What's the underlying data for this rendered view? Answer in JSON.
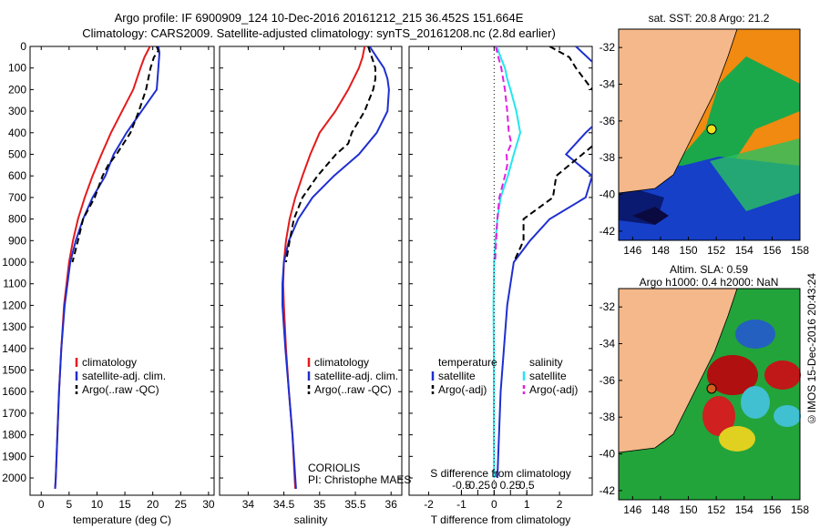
{
  "header": {
    "title_line1": "Argo profile: IF 6900909_124 10-Dec-2016 20161212_215 36.452S 151.664E",
    "title_line2": "Climatology: CARS2009. Satellite-adjusted climatology: synTS_20161208.nc (2.8d earlier)"
  },
  "credit": "©IMOS 15-Dec-2016 20:43:24",
  "colors": {
    "climatology": "#e41a1c",
    "satellite": "#1f2fd0",
    "argo": "#000000",
    "salinity_satellite": "#22e6f0",
    "salinity_argo": "#e020e0",
    "land": "#f4b88a"
  },
  "chart_data": [
    {
      "type": "line",
      "panel": "temperature",
      "xlabel": "temperature (deg C)",
      "xlim": [
        -2,
        31
      ],
      "ylim": [
        2080,
        0
      ],
      "x_ticks": [
        0,
        5,
        10,
        15,
        20,
        25,
        30
      ],
      "y_ticks": [
        0,
        100,
        200,
        300,
        400,
        500,
        600,
        700,
        800,
        900,
        1000,
        1100,
        1200,
        1300,
        1400,
        1500,
        1600,
        1700,
        1800,
        1900,
        2000
      ],
      "legend": [
        "climatology",
        "satellite-adj. clim.",
        "Argo(..raw -QC)"
      ],
      "series": [
        {
          "name": "climatology",
          "style": "solid",
          "color": "#e41a1c",
          "depth": [
            0,
            50,
            100,
            200,
            300,
            400,
            500,
            600,
            700,
            800,
            900,
            1000,
            1200,
            1400,
            1600,
            1800,
            2000,
            2050
          ],
          "values": [
            19.5,
            18.5,
            17.8,
            16.5,
            14.5,
            12.5,
            10.8,
            9.2,
            7.8,
            6.6,
            5.7,
            5.0,
            4.1,
            3.6,
            3.2,
            2.9,
            2.6,
            2.5
          ]
        },
        {
          "name": "satellite-adj. clim.",
          "style": "solid",
          "color": "#1f2fd0",
          "depth": [
            0,
            30,
            100,
            200,
            300,
            400,
            500,
            600,
            700,
            800,
            900,
            1000,
            1200,
            1400,
            1600,
            1800,
            2000,
            2050
          ],
          "values": [
            21.0,
            21.2,
            21.0,
            20.7,
            18.0,
            15.3,
            13.0,
            11.5,
            9.2,
            7.5,
            6.2,
            5.2,
            4.2,
            3.6,
            3.2,
            2.9,
            2.6,
            2.5
          ]
        },
        {
          "name": "Argo(..raw -QC)",
          "style": "dashed",
          "color": "#000000",
          "depth": [
            0,
            20,
            50,
            100,
            200,
            300,
            400,
            500,
            550,
            600,
            700,
            800,
            900,
            1000
          ],
          "values": [
            20.7,
            21.0,
            20.2,
            19.6,
            18.8,
            17.5,
            16.0,
            13.5,
            12.0,
            11.0,
            9.6,
            7.5,
            6.6,
            5.6
          ]
        }
      ]
    },
    {
      "type": "line",
      "panel": "salinity",
      "xlabel": "salinity",
      "xlim": [
        33.6,
        36.15
      ],
      "ylim": [
        2080,
        0
      ],
      "x_ticks": [
        34,
        34.5,
        35,
        35.5,
        36
      ],
      "legend": [
        "climatology",
        "satellite-adj. clim.",
        "Argo(..raw -QC)"
      ],
      "annotation": [
        "CORIOLIS",
        "PI: Christophe MAES"
      ],
      "series": [
        {
          "name": "climatology",
          "style": "solid",
          "color": "#e41a1c",
          "depth": [
            0,
            50,
            100,
            200,
            300,
            400,
            500,
            600,
            700,
            800,
            900,
            1000,
            1100,
            1200,
            1400,
            1600,
            1800,
            2000,
            2050
          ],
          "values": [
            35.63,
            35.6,
            35.55,
            35.4,
            35.22,
            35.0,
            34.87,
            34.76,
            34.66,
            34.58,
            34.53,
            34.5,
            34.49,
            34.5,
            34.53,
            34.57,
            34.62,
            34.65,
            34.66
          ]
        },
        {
          "name": "satellite-adj. clim.",
          "style": "solid",
          "color": "#1f2fd0",
          "depth": [
            0,
            50,
            100,
            150,
            200,
            300,
            400,
            500,
            600,
            700,
            800,
            900,
            1000,
            1100,
            1200,
            1400,
            1600,
            1800,
            2000,
            2050
          ],
          "values": [
            35.7,
            35.8,
            35.9,
            35.95,
            35.97,
            35.95,
            35.8,
            35.55,
            35.2,
            34.9,
            34.7,
            34.57,
            34.5,
            34.48,
            34.48,
            34.52,
            34.57,
            34.62,
            34.66,
            34.67
          ]
        },
        {
          "name": "Argo(..raw -QC)",
          "style": "dashed",
          "color": "#000000",
          "depth": [
            0,
            50,
            100,
            150,
            200,
            300,
            400,
            450,
            500,
            550,
            600,
            700,
            800,
            900,
            1000
          ],
          "values": [
            35.68,
            35.73,
            35.78,
            35.78,
            35.75,
            35.63,
            35.45,
            35.4,
            35.23,
            35.1,
            34.97,
            34.76,
            34.64,
            34.58,
            34.53
          ]
        }
      ]
    },
    {
      "type": "line",
      "panel": "difference",
      "xlabel": "T difference from climatology",
      "xlabel2": "S difference from climatology",
      "xlim": [
        -2.6,
        3.0
      ],
      "ylim": [
        2080,
        0
      ],
      "x_ticks": [
        -2,
        -1,
        0,
        1,
        2
      ],
      "top_ticks": [
        -0.5,
        -0.25,
        0,
        0.25,
        0.5
      ],
      "legend_temperature": [
        "temperature",
        "satellite",
        "Argo(-adj)"
      ],
      "legend_salinity": [
        "salinity",
        "satellite",
        "Argo(-adj)"
      ],
      "series": [
        {
          "name": "T satellite",
          "style": "solid",
          "color": "#1f2fd0",
          "depth": [
            0,
            100,
            200,
            300,
            400,
            500,
            600,
            700,
            800,
            900,
            1000,
            1200,
            1400,
            1600,
            1800,
            2000
          ],
          "values": [
            2.5,
            3.2,
            4.2,
            3.5,
            2.8,
            2.2,
            3.0,
            2.8,
            1.7,
            1.1,
            0.6,
            0.4,
            0.3,
            0.2,
            0.15,
            0.1
          ]
        },
        {
          "name": "T Argo(-adj)",
          "style": "dashed",
          "color": "#000000",
          "depth": [
            0,
            50,
            100,
            200,
            300,
            400,
            500,
            600,
            700,
            800,
            900,
            1000
          ],
          "values": [
            1.7,
            2.3,
            2.5,
            3.0,
            3.4,
            3.5,
            2.7,
            1.9,
            1.8,
            0.9,
            0.9,
            0.6
          ]
        },
        {
          "name": "S satellite",
          "style": "solid",
          "color": "#22e6f0",
          "depth": [
            0,
            50,
            100,
            150,
            200,
            300,
            400,
            500,
            600,
            700,
            800,
            900,
            1000,
            1100,
            1200,
            1400,
            1600,
            1800,
            2000
          ],
          "values": [
            0.08,
            0.2,
            0.33,
            0.4,
            0.5,
            0.68,
            0.8,
            0.6,
            0.42,
            0.2,
            0.1,
            0.04,
            0.0,
            -0.01,
            -0.02,
            -0.01,
            -0.01,
            -0.01,
            0.0
          ]
        },
        {
          "name": "S Argo(-adj)",
          "style": "dashed",
          "color": "#e020e0",
          "depth": [
            0,
            50,
            100,
            200,
            300,
            400,
            450,
            500,
            550,
            600,
            700,
            800,
            900,
            1000
          ],
          "values": [
            0.05,
            0.13,
            0.22,
            0.33,
            0.4,
            0.45,
            0.53,
            0.38,
            0.4,
            0.33,
            0.16,
            0.1,
            0.06,
            0.03
          ]
        }
      ]
    }
  ],
  "maps": {
    "sst": {
      "title": "sat. SST: 20.8 Argo: 21.2",
      "lat_ticks": [
        "-32",
        "-34",
        "-36",
        "-38",
        "-40",
        "-42"
      ],
      "lon_ticks": [
        "146",
        "148",
        "150",
        "152",
        "154",
        "156",
        "158"
      ]
    },
    "sla": {
      "title_line1": "Altim. SLA: 0.59",
      "title_line2": "Argo h1000: 0.4 h2000: NaN",
      "lat_ticks": [
        "-32",
        "-34",
        "-36",
        "-38",
        "-40",
        "-42"
      ],
      "lon_ticks": [
        "146",
        "148",
        "150",
        "152",
        "154",
        "156",
        "158"
      ]
    }
  }
}
